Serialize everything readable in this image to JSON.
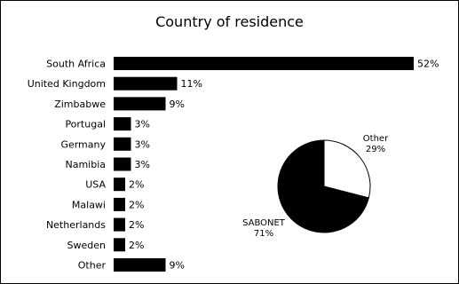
{
  "chart_data": [
    {
      "type": "bar",
      "orientation": "horizontal",
      "title": "Country of residence",
      "categories": [
        "South Africa",
        "United Kingdom",
        "Zimbabwe",
        "Portugal",
        "Germany",
        "Namibia",
        "USA",
        "Malawi",
        "Netherlands",
        "Sweden",
        "Other"
      ],
      "values": [
        52,
        11,
        9,
        3,
        3,
        3,
        2,
        2,
        2,
        2,
        9
      ],
      "value_labels": [
        "52%",
        "11%",
        "9%",
        "3%",
        "3%",
        "3%",
        "2%",
        "2%",
        "2%",
        "2%",
        "9%"
      ],
      "unit": "%",
      "bar_color": "#000000",
      "grid": false,
      "legend": "none"
    },
    {
      "type": "pie",
      "labels": [
        "Other",
        "SABONET"
      ],
      "values": [
        29,
        71
      ],
      "value_labels": [
        "29%",
        "71%"
      ],
      "colors": [
        "#ffffff",
        "#000000"
      ],
      "legend": "none"
    }
  ]
}
